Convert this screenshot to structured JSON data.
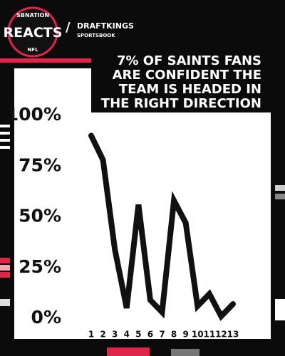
{
  "brand": {
    "network": "SBNATION",
    "show": "REACTS",
    "league": "NFL",
    "separator": "/",
    "sponsor": "DRAFTKINGS",
    "sponsor_sub": "SPORTSBOOK"
  },
  "chart_data": {
    "type": "line",
    "title": "7% of Saints fans are confident the team is headed in the right direction",
    "categories": [
      "1",
      "2",
      "3",
      "4",
      "5",
      "6",
      "7",
      "8",
      "9",
      "10",
      "11",
      "12",
      "13"
    ],
    "values": [
      90,
      78,
      34,
      5,
      56,
      9,
      3,
      58,
      47,
      6,
      12,
      1,
      7
    ],
    "color": "#111111",
    "ylim": [
      0,
      100
    ],
    "yticks": [
      {
        "value": 0,
        "label": "0%"
      },
      {
        "value": 25,
        "label": "25%"
      },
      {
        "value": 50,
        "label": "50%"
      },
      {
        "value": 75,
        "label": "75%"
      },
      {
        "value": 100,
        "label": "100%"
      }
    ]
  }
}
